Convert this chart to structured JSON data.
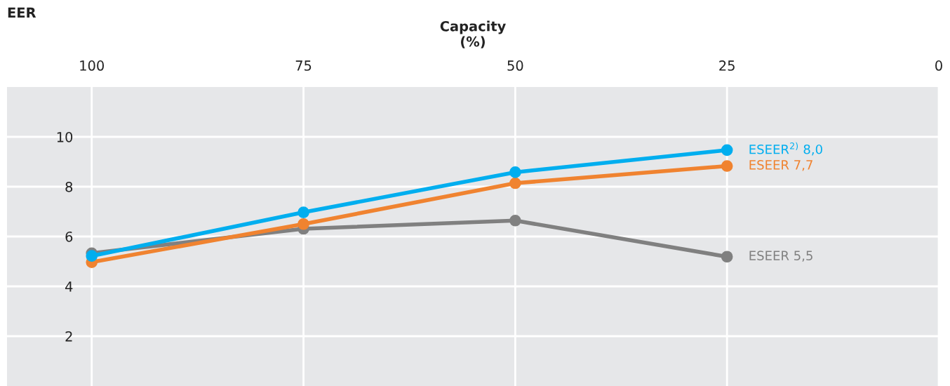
{
  "chart_data": {
    "type": "line",
    "xlabel": "Capacity\n(%)",
    "ylabel": "EER",
    "x": [
      100,
      75,
      50,
      25
    ],
    "xlim": [
      110,
      0
    ],
    "xticks": [
      100,
      75,
      50,
      25,
      0
    ],
    "ylim": [
      0,
      12
    ],
    "yticks": [
      2,
      4,
      6,
      8,
      10
    ],
    "grid": true,
    "legend": false,
    "marker": "circle",
    "line_style": "solid",
    "series": [
      {
        "name": "ESEER$^{2)}$ 8,0",
        "color": "#00aeef",
        "values": [
          5.22,
          6.97,
          8.58,
          9.47
        ]
      },
      {
        "name": "ESEER 7,7",
        "color": "#f08330",
        "values": [
          4.97,
          6.5,
          8.14,
          8.83
        ]
      },
      {
        "name": "ESEER 5,5",
        "color": "#808080",
        "values": [
          5.33,
          6.31,
          6.64,
          5.19
        ]
      }
    ]
  }
}
